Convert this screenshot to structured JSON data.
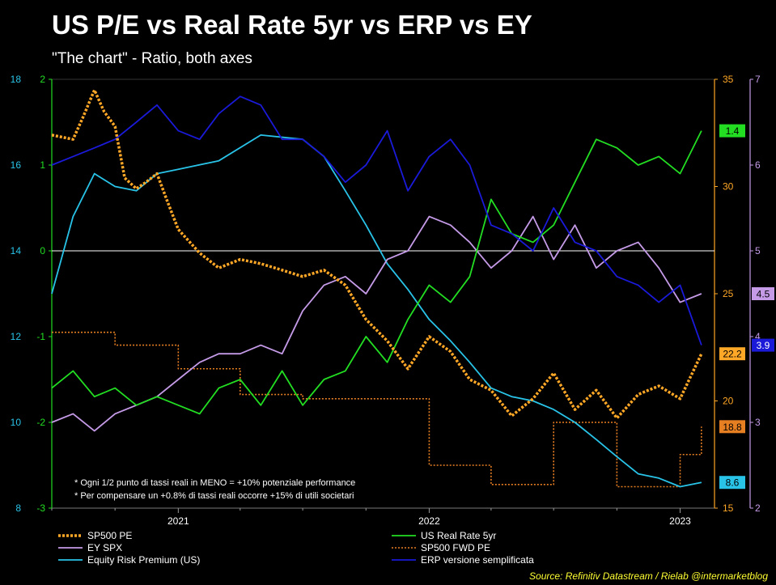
{
  "title": "US P/E vs Real Rate 5yr vs ERP vs EY",
  "subtitle": "\"The chart\" - Ratio, both axes",
  "source": "Source: Refinitiv Datastream / Rielab @intermarketblog",
  "colors": {
    "background": "#000000",
    "sp500_pe": "#ffa726",
    "real_rate": "#22dd22",
    "ey_spx": "#c59be8",
    "fwd_pe": "#e67e22",
    "erp": "#29c3e8",
    "erp_simpl": "#1a1ad8"
  },
  "chart_data": {
    "type": "line",
    "grid": false,
    "x_tick_labels": [
      "2021",
      "2022",
      "2023"
    ],
    "x_range": [
      "2020-07",
      "2023-02"
    ],
    "axes": {
      "left_outer": {
        "color": "#29c3e8",
        "range": [
          8,
          18
        ],
        "ticks": [
          "8",
          "10",
          "12",
          "14",
          "16",
          "18"
        ]
      },
      "left_inner": {
        "color": "#22dd22",
        "range": [
          -3,
          2
        ],
        "ticks": [
          "-3",
          "-2",
          "-1",
          "0",
          "1",
          "2"
        ]
      },
      "right_inner": {
        "color": "#ffa726",
        "range": [
          15,
          35
        ],
        "ticks": [
          "15",
          "20",
          "25",
          "30",
          "35"
        ]
      },
      "right_outer": {
        "color": "#c59be8",
        "range": [
          2,
          7
        ],
        "ticks": [
          "2",
          "3",
          "4",
          "5",
          "6",
          "7"
        ]
      }
    },
    "zero_line": 0,
    "series": [
      {
        "name": "SP500 PE",
        "axis": "right_inner",
        "style": "dotted-thick",
        "x": [
          "2020-07-01",
          "2020-08-01",
          "2020-08-15",
          "2020-09-01",
          "2020-09-15",
          "2020-10-01",
          "2020-10-15",
          "2020-11-01",
          "2020-11-15",
          "2020-12-01",
          "2020-12-15",
          "2021-01-01",
          "2021-02-01",
          "2021-03-01",
          "2021-04-01",
          "2021-05-01",
          "2021-06-01",
          "2021-07-01",
          "2021-08-01",
          "2021-09-01",
          "2021-10-01",
          "2021-11-01",
          "2021-12-01",
          "2022-01-01",
          "2022-02-01",
          "2022-03-01",
          "2022-04-01",
          "2022-05-01",
          "2022-06-01",
          "2022-07-01",
          "2022-08-01",
          "2022-09-01",
          "2022-10-01",
          "2022-11-01",
          "2022-12-01",
          "2023-01-01",
          "2023-02-01"
        ],
        "y": [
          32.4,
          32.2,
          33.2,
          34.5,
          33.5,
          32.8,
          30.4,
          29.9,
          30.2,
          30.6,
          29.4,
          28.0,
          26.9,
          26.2,
          26.6,
          26.4,
          26.1,
          25.8,
          26.1,
          25.4,
          23.8,
          22.8,
          21.5,
          23.0,
          22.3,
          21.0,
          20.5,
          19.3,
          20.1,
          21.3,
          19.6,
          20.5,
          19.2,
          20.3,
          20.7,
          20.1,
          22.2
        ]
      },
      {
        "name": "US Real Rate 5yr",
        "axis": "left_inner",
        "style": "solid",
        "x": [
          "2020-07-01",
          "2020-08-01",
          "2020-09-01",
          "2020-10-01",
          "2020-11-01",
          "2020-12-01",
          "2021-01-01",
          "2021-02-01",
          "2021-03-01",
          "2021-04-01",
          "2021-05-01",
          "2021-06-01",
          "2021-07-01",
          "2021-08-01",
          "2021-09-01",
          "2021-10-01",
          "2021-11-01",
          "2021-12-01",
          "2022-01-01",
          "2022-02-01",
          "2022-03-01",
          "2022-04-01",
          "2022-05-01",
          "2022-06-01",
          "2022-07-01",
          "2022-08-01",
          "2022-09-01",
          "2022-10-01",
          "2022-11-01",
          "2022-12-01",
          "2023-01-01",
          "2023-02-01"
        ],
        "y": [
          -1.6,
          -1.4,
          -1.7,
          -1.6,
          -1.8,
          -1.7,
          -1.8,
          -1.9,
          -1.6,
          -1.5,
          -1.8,
          -1.4,
          -1.8,
          -1.5,
          -1.4,
          -1.0,
          -1.3,
          -0.8,
          -0.4,
          -0.6,
          -0.3,
          0.6,
          0.2,
          0.1,
          0.3,
          0.8,
          1.3,
          1.2,
          1.0,
          1.1,
          0.9,
          1.4
        ]
      },
      {
        "name": "EY SPX",
        "axis": "right_outer",
        "style": "solid",
        "x": [
          "2020-07-01",
          "2020-08-01",
          "2020-09-01",
          "2020-10-01",
          "2020-11-01",
          "2020-12-01",
          "2021-01-01",
          "2021-02-01",
          "2021-03-01",
          "2021-04-01",
          "2021-05-01",
          "2021-06-01",
          "2021-07-01",
          "2021-08-01",
          "2021-09-01",
          "2021-10-01",
          "2021-11-01",
          "2021-12-01",
          "2022-01-01",
          "2022-02-01",
          "2022-03-01",
          "2022-04-01",
          "2022-05-01",
          "2022-06-01",
          "2022-07-01",
          "2022-08-01",
          "2022-09-01",
          "2022-10-01",
          "2022-11-01",
          "2022-12-01",
          "2023-01-01",
          "2023-02-01"
        ],
        "y": [
          3.0,
          3.1,
          2.9,
          3.1,
          3.2,
          3.3,
          3.5,
          3.7,
          3.8,
          3.8,
          3.9,
          3.8,
          4.3,
          4.6,
          4.7,
          4.5,
          4.9,
          5.0,
          5.4,
          5.3,
          5.1,
          4.8,
          5.0,
          5.4,
          4.9,
          5.3,
          4.8,
          5.0,
          5.1,
          4.8,
          4.4,
          4.5
        ]
      },
      {
        "name": "SP500 FWD PE",
        "axis": "right_inner",
        "style": "dotted-thin",
        "x": [
          "2020-07-01",
          "2020-10-01",
          "2021-01-01",
          "2021-04-01",
          "2021-07-01",
          "2021-10-01",
          "2022-01-01",
          "2022-04-01",
          "2022-07-01",
          "2022-10-01",
          "2023-01-01",
          "2023-02-01"
        ],
        "y": [
          23.2,
          22.6,
          21.5,
          20.3,
          20.1,
          20.1,
          17.0,
          16.1,
          19.0,
          16.0,
          17.5,
          18.8
        ]
      },
      {
        "name": "Equity Risk Premium (US)",
        "axis": "left_outer",
        "style": "solid",
        "x": [
          "2020-07-01",
          "2020-08-01",
          "2020-09-01",
          "2020-10-01",
          "2020-11-01",
          "2020-12-01",
          "2021-01-01",
          "2021-03-01",
          "2021-05-01",
          "2021-07-01",
          "2021-08-01",
          "2021-09-01",
          "2021-10-01",
          "2021-11-01",
          "2021-12-01",
          "2022-01-01",
          "2022-02-01",
          "2022-03-01",
          "2022-04-01",
          "2022-05-01",
          "2022-06-01",
          "2022-07-01",
          "2022-08-01",
          "2022-09-01",
          "2022-10-01",
          "2022-11-01",
          "2022-12-01",
          "2023-01-01",
          "2023-02-01"
        ],
        "y": [
          13.0,
          14.8,
          15.8,
          15.5,
          15.4,
          15.8,
          15.9,
          16.1,
          16.7,
          16.6,
          16.2,
          15.4,
          14.6,
          13.7,
          13.1,
          12.4,
          11.9,
          11.4,
          10.8,
          10.6,
          10.5,
          10.3,
          10.0,
          9.6,
          9.2,
          8.8,
          8.7,
          8.5,
          8.6
        ]
      },
      {
        "name": "ERP versione semplificata",
        "axis": "right_outer",
        "style": "solid",
        "x": [
          "2020-07-01",
          "2020-08-01",
          "2020-09-01",
          "2020-10-01",
          "2020-11-01",
          "2020-12-01",
          "2021-01-01",
          "2021-02-01",
          "2021-03-01",
          "2021-04-01",
          "2021-05-01",
          "2021-06-01",
          "2021-07-01",
          "2021-08-01",
          "2021-09-01",
          "2021-10-01",
          "2021-11-01",
          "2021-12-01",
          "2022-01-01",
          "2022-02-01",
          "2022-03-01",
          "2022-04-01",
          "2022-05-01",
          "2022-06-01",
          "2022-07-01",
          "2022-08-01",
          "2022-09-01",
          "2022-10-01",
          "2022-11-01",
          "2022-12-01",
          "2023-01-01",
          "2023-02-01"
        ],
        "y": [
          6.0,
          6.1,
          6.2,
          6.3,
          6.5,
          6.7,
          6.4,
          6.3,
          6.6,
          6.8,
          6.7,
          6.3,
          6.3,
          6.1,
          5.8,
          6.0,
          6.4,
          5.7,
          6.1,
          6.3,
          6.0,
          5.3,
          5.2,
          5.0,
          5.5,
          5.1,
          5.0,
          4.7,
          4.6,
          4.4,
          4.6,
          3.9
        ]
      }
    ],
    "end_labels": [
      {
        "text": "1.4",
        "series": "US Real Rate 5yr"
      },
      {
        "text": "4.5",
        "series": "EY SPX"
      },
      {
        "text": "22.2",
        "series": "SP500 PE"
      },
      {
        "text": "3.9",
        "series": "ERP versione semplificata"
      },
      {
        "text": "18.8",
        "series": "SP500 FWD PE"
      },
      {
        "text": "8.6",
        "series": "Equity Risk Premium (US)"
      }
    ],
    "annotations": [
      "* Ogni 1/2 punto di tassi reali in MENO = +10% potenziale performance",
      "* Per compensare un +0.8% di tassi reali occorre +15% di utili societari"
    ],
    "legend_position": "bottom",
    "legend": [
      {
        "name": "SP500 PE",
        "style": "dotted-thick"
      },
      {
        "name": "US Real Rate 5yr",
        "style": "solid"
      },
      {
        "name": "EY SPX",
        "style": "solid"
      },
      {
        "name": "SP500 FWD PE",
        "style": "dotted-thin"
      },
      {
        "name": "Equity Risk Premium (US)",
        "style": "solid"
      },
      {
        "name": "ERP versione semplificata",
        "style": "solid"
      }
    ]
  }
}
